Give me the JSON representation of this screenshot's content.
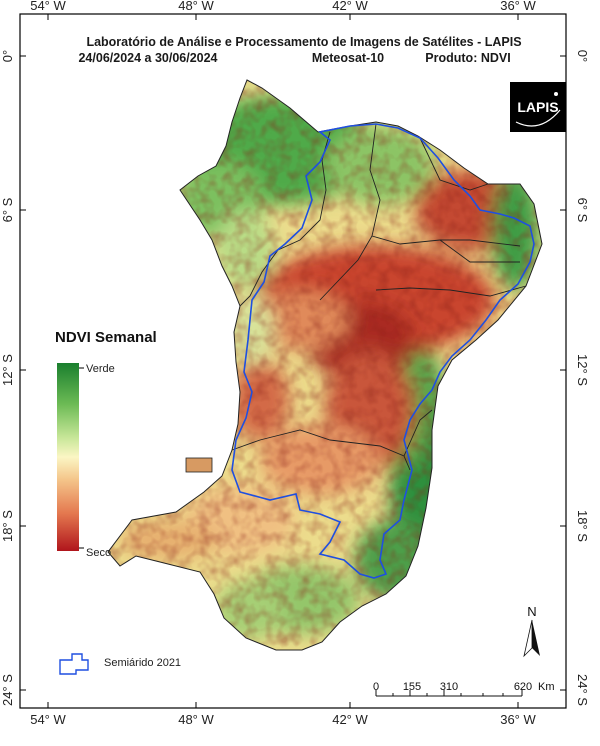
{
  "header": {
    "title": "Laboratório de Análise e Processamento de Imagens de Satélites - LAPIS",
    "period": "24/06/2024  a  30/06/2024",
    "satellite": "Meteosat-10",
    "product": "Produto: NDVI"
  },
  "logo": {
    "text": "LAPIS"
  },
  "longitude_labels": [
    "54° W",
    "48° W",
    "42° W",
    "36° W"
  ],
  "latitude_labels": [
    "0°",
    "6° S",
    "12° S",
    "18° S",
    "24° S"
  ],
  "legend": {
    "title": "NDVI Semanal",
    "high_label": "Verde",
    "low_label": "Seco",
    "colors": [
      "#1a7f2e",
      "#6dbb55",
      "#c9e79a",
      "#fbf6c4",
      "#f4c58a",
      "#e4784f",
      "#b0151c"
    ]
  },
  "region_legend": {
    "label": "Semiárido 2021",
    "color": "#1f4fe0"
  },
  "scale_bar": {
    "ticks": [
      "0",
      "155",
      "310",
      "620"
    ],
    "unit": "Km"
  },
  "north_arrow": {
    "label": "N"
  },
  "colors": {
    "frame": "#000000",
    "semiarid_outline": "#1f4fe0",
    "state_border": "#222222"
  }
}
